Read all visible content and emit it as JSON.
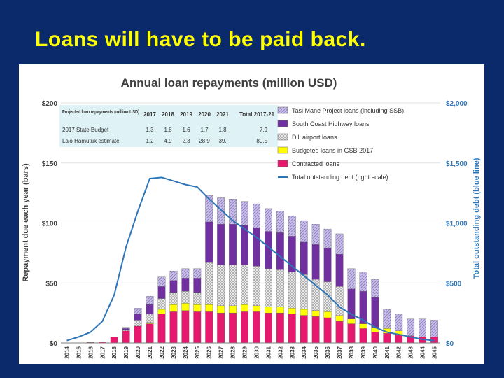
{
  "slide": {
    "title": "Loans will have to be paid back."
  },
  "chart_data": {
    "type": "bar",
    "title": "Annual loan repayments (million USD)",
    "ylabel": "Repayment due each year (bars)",
    "y2label": "Total outstanding debt (blue line)",
    "ylim": [
      0,
      200
    ],
    "y2lim": [
      0,
      2000
    ],
    "yticks": [
      "$0",
      "$50",
      "$100",
      "$150",
      "$200"
    ],
    "y2ticks": [
      "$0",
      "$500",
      "$1,000",
      "$1,500",
      "$2,000"
    ],
    "categories": [
      "2014",
      "2015",
      "2016",
      "2017",
      "2018",
      "2019",
      "2020",
      "2021",
      "2022",
      "2023",
      "2024",
      "2025",
      "2026",
      "2027",
      "2028",
      "2029",
      "2030",
      "2031",
      "2032",
      "2033",
      "2034",
      "2035",
      "2036",
      "2037",
      "2038",
      "2039",
      "2040",
      "2041",
      "2042",
      "2043",
      "2044",
      "2045"
    ],
    "series": [
      {
        "name": "Contracted loans",
        "color": "#e6196e",
        "values": [
          0,
          0,
          0.5,
          1,
          5,
          10,
          14,
          16,
          24,
          26,
          27,
          26,
          26,
          25,
          25,
          26,
          26,
          25,
          25,
          24,
          23,
          22,
          21,
          18,
          16,
          12,
          9,
          8,
          7,
          6,
          5,
          5
        ]
      },
      {
        "name": "Budgeted loans in GSB 2017",
        "color": "#ffff00",
        "values": [
          0,
          0,
          0,
          0,
          0,
          0,
          0,
          1,
          4,
          6,
          6,
          6,
          6,
          6,
          6,
          6,
          5,
          5,
          5,
          5,
          5,
          5,
          5,
          5,
          4,
          4,
          4,
          4,
          3,
          0,
          0,
          0
        ]
      },
      {
        "name": "Dili airport loans",
        "color": "#d9d9d9",
        "values": [
          0,
          0,
          0,
          0,
          0,
          1,
          5,
          7,
          9,
          10,
          10,
          10,
          35,
          34,
          34,
          33,
          33,
          32,
          31,
          30,
          29,
          26,
          25,
          24,
          0,
          0,
          0,
          0,
          0,
          0,
          0,
          0
        ]
      },
      {
        "name": "South Coast Highway loans",
        "color": "#7030a0",
        "values": [
          0,
          0,
          0,
          0,
          0,
          1,
          5,
          8,
          10,
          10,
          11,
          12,
          34,
          34,
          34,
          33,
          32,
          31,
          31,
          30,
          27,
          29,
          28,
          27,
          25,
          27,
          25,
          0,
          0,
          0,
          0,
          0
        ]
      },
      {
        "name": "Tasi Mane Project loans (including SSB)",
        "color": "#b4a7d6",
        "values": [
          0,
          0,
          0,
          0,
          0,
          1,
          5,
          7,
          8,
          8,
          8,
          8,
          22,
          22,
          21,
          20,
          20,
          19,
          18,
          17,
          18,
          17,
          16,
          17,
          17,
          16,
          15,
          16,
          14,
          14,
          15,
          14
        ]
      }
    ],
    "line_series": {
      "name": "Total outstanding debt (right scale)",
      "color": "#2e75b6",
      "values": [
        20,
        50,
        90,
        180,
        400,
        800,
        1100,
        1370,
        1380,
        1350,
        1320,
        1300,
        1200,
        1110,
        1020,
        950,
        880,
        800,
        720,
        640,
        560,
        480,
        400,
        300,
        240,
        190,
        130,
        90,
        70,
        50,
        30,
        20
      ]
    },
    "legend_position": "top-right",
    "table": {
      "header": [
        "Projected loan repayments (million USD)",
        "2017",
        "2018",
        "2019",
        "2020",
        "2021",
        "Total 2017-21"
      ],
      "rows": [
        [
          "2017 State Budget",
          "1.3",
          "1.8",
          "1.6",
          "1.7",
          "1.8",
          "7.9"
        ],
        [
          "La'o Hamutuk estimate",
          "1.2",
          "4.9",
          "2.3",
          "28.9",
          "39.",
          "80.5"
        ]
      ]
    }
  }
}
